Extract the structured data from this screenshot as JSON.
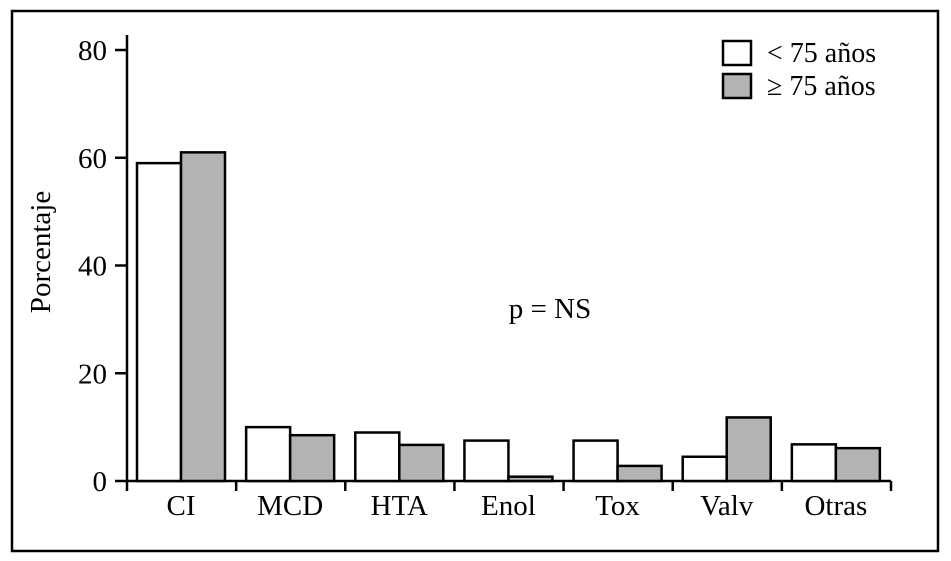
{
  "chart_data": {
    "type": "bar",
    "categories": [
      "CI",
      "MCD",
      "HTA",
      "Enol",
      "Tox",
      "Valv",
      "Otras"
    ],
    "series": [
      {
        "name": "< 75 años",
        "values": [
          59,
          10,
          9,
          7.5,
          7.5,
          4.5,
          6.8
        ],
        "color": "#ffffff"
      },
      {
        "name": "≥ 75 años",
        "values": [
          61,
          8.5,
          6.7,
          0.8,
          2.8,
          11.8,
          6.1
        ],
        "color": "#b3b3b3"
      }
    ],
    "ylabel": "Porcentaje",
    "xlabel": "",
    "ylim": [
      0,
      80
    ],
    "yticks": [
      0,
      20,
      40,
      60,
      80
    ],
    "annotation": "p = NS",
    "legend_position": "top-right",
    "grid": false
  }
}
